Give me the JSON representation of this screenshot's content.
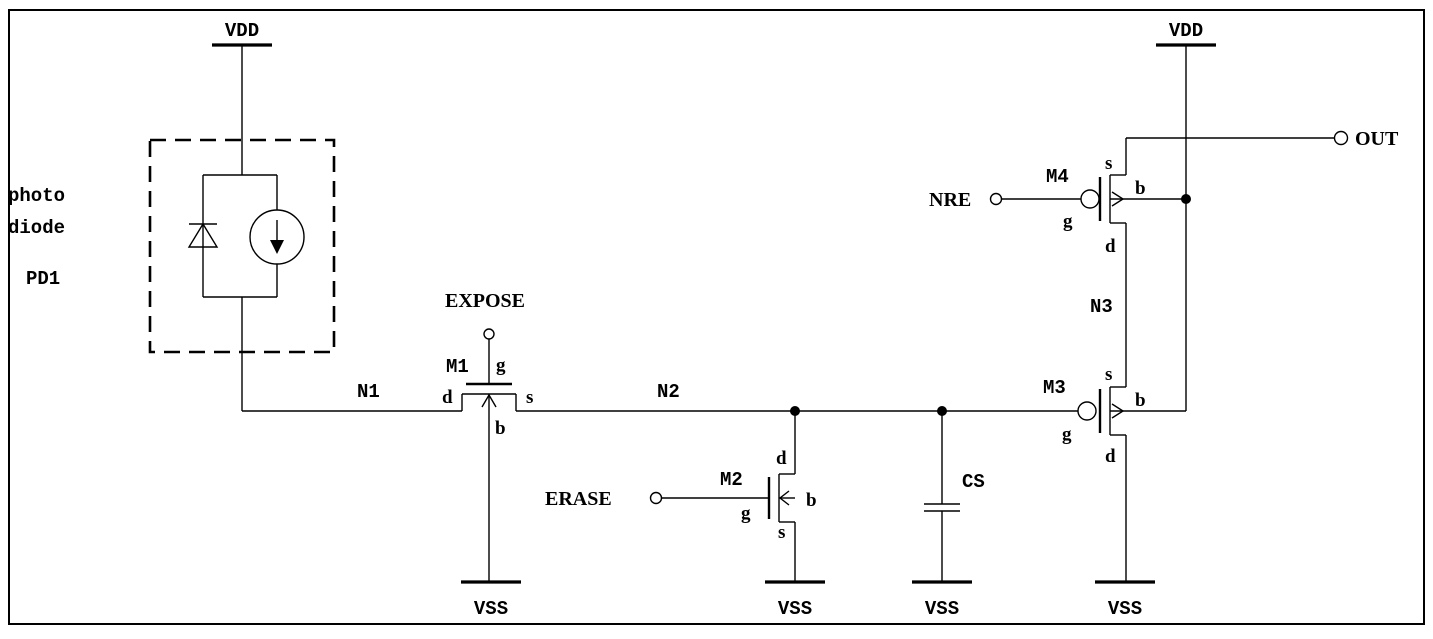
{
  "supplies": {
    "vdd_left": "VDD",
    "vdd_right": "VDD",
    "vss_1": "VSS",
    "vss_2": "VSS",
    "vss_3": "VSS",
    "vss_4": "VSS"
  },
  "photodiode": {
    "label_line1": "photo",
    "label_line2": "diode",
    "ref": "PD1"
  },
  "nets": {
    "n1": "N1",
    "n2": "N2",
    "n3": "N3"
  },
  "inputs": {
    "expose": "EXPOSE",
    "erase": "ERASE",
    "nre": "NRE"
  },
  "output": {
    "out": "OUT"
  },
  "capacitor": {
    "ref": "CS"
  },
  "transistors": {
    "m1": {
      "ref": "M1",
      "g": "g",
      "d": "d",
      "s": "s",
      "b": "b"
    },
    "m2": {
      "ref": "M2",
      "g": "g",
      "d": "d",
      "s": "s",
      "b": "b"
    },
    "m3": {
      "ref": "M3",
      "g": "g",
      "d": "d",
      "s": "s",
      "b": "b"
    },
    "m4": {
      "ref": "M4",
      "g": "g",
      "d": "d",
      "s": "s",
      "b": "b"
    }
  }
}
